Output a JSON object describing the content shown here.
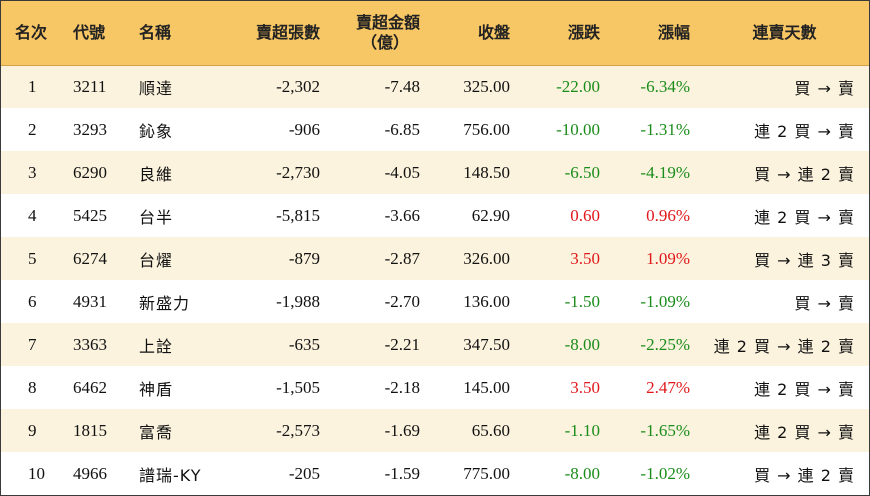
{
  "columns": {
    "rank": "名次",
    "code": "代號",
    "name": "名稱",
    "net_sell_lots": "賣超張數",
    "net_sell_amount_line1": "賣超金額",
    "net_sell_amount_line2": "（億）",
    "close": "收盤",
    "change": "漲跌",
    "change_pct": "漲幅",
    "streak": "連賣天數"
  },
  "colors": {
    "header_bg": "#f8c765",
    "alt_row_bg": "#fbf3de",
    "up": "#e0181b",
    "down": "#1a8c1a"
  },
  "rows": [
    {
      "rank": "1",
      "code": "3211",
      "name": "順達",
      "net_sell_lots": "-2,302",
      "net_sell_amount": "-7.48",
      "close": "325.00",
      "change": "-22.00",
      "change_pct": "-6.34%",
      "direction": "down",
      "streak": "買 → 賣"
    },
    {
      "rank": "2",
      "code": "3293",
      "name": "鈊象",
      "net_sell_lots": "-906",
      "net_sell_amount": "-6.85",
      "close": "756.00",
      "change": "-10.00",
      "change_pct": "-1.31%",
      "direction": "down",
      "streak": "連 2 買 → 賣"
    },
    {
      "rank": "3",
      "code": "6290",
      "name": "良維",
      "net_sell_lots": "-2,730",
      "net_sell_amount": "-4.05",
      "close": "148.50",
      "change": "-6.50",
      "change_pct": "-4.19%",
      "direction": "down",
      "streak": "買 → 連 2 賣"
    },
    {
      "rank": "4",
      "code": "5425",
      "name": "台半",
      "net_sell_lots": "-5,815",
      "net_sell_amount": "-3.66",
      "close": "62.90",
      "change": "0.60",
      "change_pct": "0.96%",
      "direction": "up",
      "streak": "連 2 買 → 賣"
    },
    {
      "rank": "5",
      "code": "6274",
      "name": "台燿",
      "net_sell_lots": "-879",
      "net_sell_amount": "-2.87",
      "close": "326.00",
      "change": "3.50",
      "change_pct": "1.09%",
      "direction": "up",
      "streak": "買 → 連 3 賣"
    },
    {
      "rank": "6",
      "code": "4931",
      "name": "新盛力",
      "net_sell_lots": "-1,988",
      "net_sell_amount": "-2.70",
      "close": "136.00",
      "change": "-1.50",
      "change_pct": "-1.09%",
      "direction": "down",
      "streak": "買 → 賣"
    },
    {
      "rank": "7",
      "code": "3363",
      "name": "上詮",
      "net_sell_lots": "-635",
      "net_sell_amount": "-2.21",
      "close": "347.50",
      "change": "-8.00",
      "change_pct": "-2.25%",
      "direction": "down",
      "streak": "連 2 買 → 連 2 賣"
    },
    {
      "rank": "8",
      "code": "6462",
      "name": "神盾",
      "net_sell_lots": "-1,505",
      "net_sell_amount": "-2.18",
      "close": "145.00",
      "change": "3.50",
      "change_pct": "2.47%",
      "direction": "up",
      "streak": "連 2 買 → 賣"
    },
    {
      "rank": "9",
      "code": "1815",
      "name": "富喬",
      "net_sell_lots": "-2,573",
      "net_sell_amount": "-1.69",
      "close": "65.60",
      "change": "-1.10",
      "change_pct": "-1.65%",
      "direction": "down",
      "streak": "連 2 買 → 賣"
    },
    {
      "rank": "10",
      "code": "4966",
      "name": "譜瑞-KY",
      "net_sell_lots": "-205",
      "net_sell_amount": "-1.59",
      "close": "775.00",
      "change": "-8.00",
      "change_pct": "-1.02%",
      "direction": "down",
      "streak": "買 → 連 2 賣"
    }
  ]
}
